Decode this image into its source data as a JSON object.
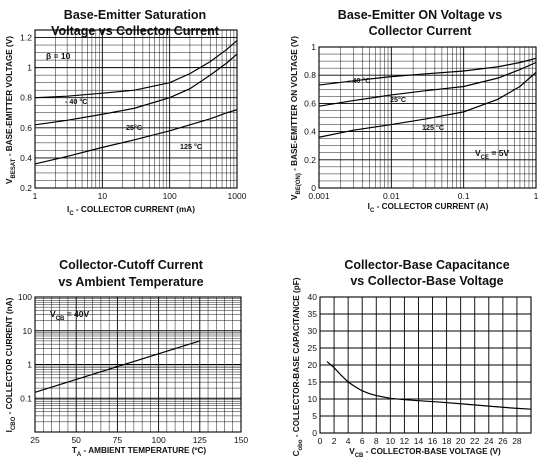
{
  "chart_data": [
    {
      "type": "line",
      "title": [
        "Base-Emitter Saturation",
        "Voltage vs Collector Current"
      ],
      "xlabel": {
        "pre": "I",
        "sub": "C",
        "post": " - COLLECTOR CURRENT (mA)"
      },
      "ylabel": {
        "pre": "V",
        "sub": "BESAT",
        "post": " - BASE-EMITTER VOLTAGE (V)"
      },
      "xscale": "log",
      "xlim": [
        1,
        1000
      ],
      "ylim": [
        0.2,
        1.25
      ],
      "xticks": [
        1,
        10,
        100,
        1000
      ],
      "xtick_labels": [
        "1",
        "10",
        "100",
        "1000"
      ],
      "yticks": [
        0.2,
        0.4,
        0.6,
        0.8,
        1.0,
        1.2
      ],
      "ytick_labels": [
        "0.2",
        "0.4",
        "0.6",
        "0.8",
        "1",
        "1.2"
      ],
      "minor_y_step": 0.05,
      "grid": true,
      "condition": "β = 10",
      "series": [
        {
          "name": "- 40 °C",
          "x": [
            1,
            3,
            10,
            30,
            100,
            200,
            400,
            700,
            1000
          ],
          "y": [
            0.8,
            0.81,
            0.83,
            0.85,
            0.9,
            0.96,
            1.04,
            1.12,
            1.18
          ]
        },
        {
          "name": "25°C",
          "x": [
            1,
            3,
            10,
            30,
            100,
            200,
            400,
            700,
            1000
          ],
          "y": [
            0.62,
            0.65,
            0.69,
            0.73,
            0.8,
            0.86,
            0.95,
            1.03,
            1.09
          ]
        },
        {
          "name": "125 °C",
          "x": [
            1,
            3,
            10,
            30,
            100,
            200,
            400,
            700,
            1000
          ],
          "y": [
            0.36,
            0.41,
            0.47,
            0.52,
            0.58,
            0.62,
            0.66,
            0.7,
            0.72
          ]
        }
      ]
    },
    {
      "type": "line",
      "title": [
        "Base-Emitter ON Voltage vs",
        "Collector Current"
      ],
      "xlabel": {
        "pre": "I",
        "sub": "C",
        "post": " - COLLECTOR CURRENT (A)"
      },
      "ylabel": {
        "pre": "V",
        "sub": "BE(ON)",
        "post": " - BASE-EMITTER ON VOLTAGE (V)"
      },
      "xscale": "log",
      "xlim": [
        0.001,
        1
      ],
      "ylim": [
        0,
        1
      ],
      "xticks": [
        0.001,
        0.01,
        0.1,
        1
      ],
      "xtick_labels": [
        "0.001",
        "0.01",
        "0.1",
        "1"
      ],
      "yticks": [
        0,
        0.2,
        0.4,
        0.6,
        0.8,
        1
      ],
      "ytick_labels": [
        "0",
        "0.2",
        "0.4",
        "0.6",
        "0.8",
        "1"
      ],
      "minor_y_step": 0.05,
      "grid": true,
      "condition": {
        "pre": "V",
        "sub": "CE",
        "post": " = 5V"
      },
      "series": [
        {
          "name": "- 40 °C",
          "x": [
            0.001,
            0.003,
            0.01,
            0.03,
            0.1,
            0.3,
            0.6,
            1
          ],
          "y": [
            0.73,
            0.76,
            0.79,
            0.81,
            0.83,
            0.86,
            0.89,
            0.92
          ]
        },
        {
          "name": "25°C",
          "x": [
            0.001,
            0.003,
            0.01,
            0.03,
            0.1,
            0.3,
            0.6,
            1
          ],
          "y": [
            0.58,
            0.62,
            0.66,
            0.69,
            0.72,
            0.78,
            0.84,
            0.89
          ]
        },
        {
          "name": "125 °C",
          "x": [
            0.001,
            0.003,
            0.01,
            0.03,
            0.1,
            0.3,
            0.6,
            1
          ],
          "y": [
            0.36,
            0.41,
            0.45,
            0.49,
            0.54,
            0.63,
            0.72,
            0.82
          ]
        }
      ]
    },
    {
      "type": "line",
      "title": [
        "Collector-Cutoff Current",
        "vs Ambient Temperature"
      ],
      "xlabel": {
        "pre": "T",
        "sub": "A",
        "post": " - AMBIENT TEMPERATURE (ºC)"
      },
      "ylabel": {
        "pre": "I",
        "sub": "CBO",
        "post": " - COLLECTOR CURRENT (nA)"
      },
      "xscale": "linear",
      "yscale": "log",
      "xlim": [
        25,
        150
      ],
      "ylim": [
        0.01,
        100
      ],
      "xticks": [
        25,
        50,
        75,
        100,
        125,
        150
      ],
      "xtick_labels": [
        "25",
        "50",
        "75",
        "100",
        "125",
        "150"
      ],
      "yticks": [
        0.1,
        1,
        10,
        100
      ],
      "ytick_labels": [
        "0.1",
        "1",
        "10",
        "100"
      ],
      "minor_x_step": 5,
      "grid": true,
      "condition": {
        "pre": "V",
        "sub": "CB",
        "post": " = 40V"
      },
      "series": [
        {
          "name": "",
          "x": [
            25,
            125
          ],
          "y": [
            0.15,
            5
          ]
        }
      ]
    },
    {
      "type": "line",
      "title": [
        "Collector-Base Capacitance",
        "vs Collector-Base Voltage"
      ],
      "xlabel": {
        "pre": "V",
        "sub": "CB",
        "post": " - COLLECTOR-BASE VOLTAGE (V)"
      },
      "ylabel": {
        "pre": "C",
        "sub": "obo",
        "post": " - COLLECTOR-BASE CAPACITANCE (pF)"
      },
      "xscale": "linear",
      "xlim": [
        0,
        30
      ],
      "ylim": [
        0,
        40
      ],
      "xticks": [
        0,
        2,
        4,
        6,
        8,
        10,
        12,
        14,
        16,
        18,
        20,
        22,
        24,
        26,
        28
      ],
      "xtick_labels": [
        "0",
        "2",
        "4",
        "6",
        "8",
        "10",
        "12",
        "14",
        "16",
        "18",
        "20",
        "22",
        "24",
        "26",
        "28"
      ],
      "yticks": [
        0,
        5,
        10,
        15,
        20,
        25,
        30,
        35,
        40
      ],
      "ytick_labels": [
        "0",
        "5",
        "10",
        "15",
        "20",
        "25",
        "30",
        "35",
        "40"
      ],
      "grid": true,
      "series": [
        {
          "name": "",
          "x": [
            1,
            2,
            3,
            4,
            5,
            6,
            7,
            8,
            9,
            10,
            12,
            14,
            17,
            20,
            24,
            27,
            30
          ],
          "y": [
            21,
            19.2,
            17,
            15,
            13.6,
            12.4,
            11.6,
            11,
            10.6,
            10.2,
            9.8,
            9.5,
            9.1,
            8.6,
            7.9,
            7.4,
            7
          ]
        }
      ]
    }
  ]
}
